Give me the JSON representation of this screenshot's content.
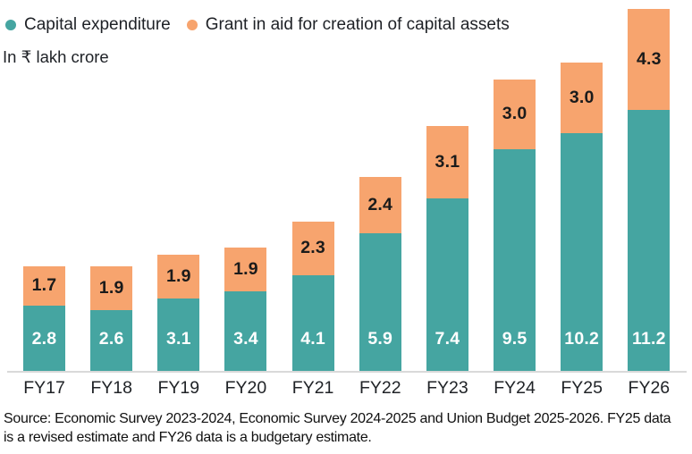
{
  "units_label": "In ₹ lakh crore",
  "legend": [
    {
      "label": "Capital expenditure",
      "color": "#45A5A1"
    },
    {
      "label": "Grant in aid for creation of capital assets",
      "color": "#F7A46E"
    }
  ],
  "source_note": "Source: Economic Survey 2023-2024, Economic Survey 2024-2025 and Union Budget 2025-2026. FY25 data is a revised estimate and FY26 data is a budgetary estimate.",
  "chart_data": {
    "type": "bar",
    "stacked": true,
    "title": "",
    "categories": [
      "FY17",
      "FY18",
      "FY19",
      "FY20",
      "FY21",
      "FY22",
      "FY23",
      "FY24",
      "FY25",
      "FY26"
    ],
    "series": [
      {
        "name": "Capital expenditure",
        "color": "#45A5A1",
        "label_text_color": "#FFFFFF",
        "values": [
          2.8,
          2.6,
          3.1,
          3.4,
          4.1,
          5.9,
          7.4,
          9.5,
          10.2,
          11.2
        ]
      },
      {
        "name": "Grant in aid for creation of capital assets",
        "color": "#F7A46E",
        "label_text_color": "#1B1B1B",
        "values": [
          1.7,
          1.9,
          1.9,
          1.9,
          2.3,
          2.4,
          3.1,
          3.0,
          3.0,
          4.3
        ]
      }
    ],
    "totals": [
      4.5,
      4.5,
      5.0,
      5.3,
      6.4,
      8.3,
      10.5,
      12.5,
      13.2,
      15.5
    ],
    "xlabel": "",
    "ylabel": "In ₹ lakh crore",
    "ylim": [
      0,
      16
    ],
    "grid": false,
    "legend_position": "top-left",
    "axis_line_color": "#D9D9D9"
  }
}
